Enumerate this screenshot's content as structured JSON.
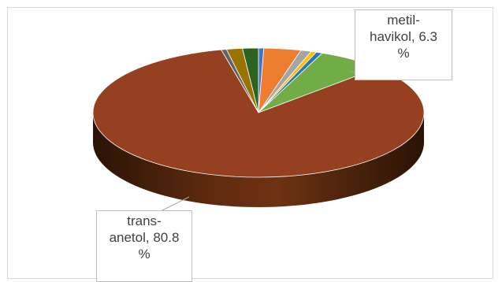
{
  "chart_data": {
    "type": "pie",
    "style": "3d",
    "title": "",
    "slices": [
      {
        "label": "",
        "value": 0.5,
        "color": "#4472c4"
      },
      {
        "label": "",
        "value": 3.5,
        "color": "#ed7d31"
      },
      {
        "label": "",
        "value": 1.0,
        "color": "#a5a5a5"
      },
      {
        "label": "",
        "value": 0.5,
        "color": "#ffc000"
      },
      {
        "label": "",
        "value": 0.6,
        "color": "#2e75b6"
      },
      {
        "label": "metil-havikol",
        "value": 6.3,
        "color": "#70ad47"
      },
      {
        "label": "trans-anetol",
        "value": 80.8,
        "color": "#954020"
      },
      {
        "label": "",
        "value": 0.5,
        "color": "#636363"
      },
      {
        "label": "",
        "value": 1.5,
        "color": "#997300"
      },
      {
        "label": "",
        "value": 1.5,
        "color": "#2b6323"
      }
    ],
    "data_labels": {
      "metil_havikol": {
        "line1": "metil-",
        "line2": "havikol, 6.3",
        "line3": "%"
      },
      "trans_anetol": {
        "line1": "trans-",
        "line2": "anetol, 80.8",
        "line3": "%"
      }
    }
  }
}
